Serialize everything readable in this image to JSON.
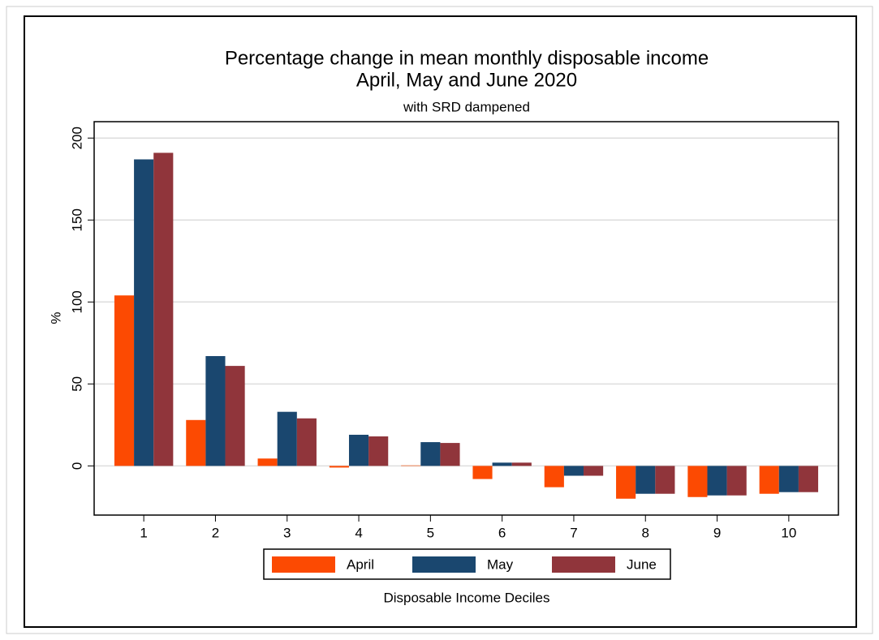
{
  "chart_data": {
    "type": "bar",
    "title": "Percentage change in mean monthly disposable income",
    "title_line2": "April, May and June 2020",
    "subtitle": "with SRD dampened",
    "x_label": "Disposable Income Deciles",
    "y_label": "%",
    "categories": [
      "1",
      "2",
      "3",
      "4",
      "5",
      "6",
      "7",
      "8",
      "9",
      "10"
    ],
    "series": [
      {
        "name": "April",
        "color": "#fc4a02",
        "values": [
          104,
          28,
          4.5,
          -1,
          0.3,
          -8,
          -13,
          -20,
          -19,
          -17
        ]
      },
      {
        "name": "May",
        "color": "#1a476f",
        "values": [
          187,
          67,
          33,
          19,
          14.5,
          2,
          -6,
          -17,
          -18,
          -16
        ]
      },
      {
        "name": "June",
        "color": "#90353b",
        "values": [
          191,
          61,
          29,
          18,
          14,
          2,
          -6,
          -17,
          -18,
          -16
        ]
      }
    ],
    "ylim": [
      -30,
      210
    ],
    "yticks": [
      0,
      50,
      100,
      150,
      200
    ],
    "grid": true,
    "legend": "bottom"
  }
}
